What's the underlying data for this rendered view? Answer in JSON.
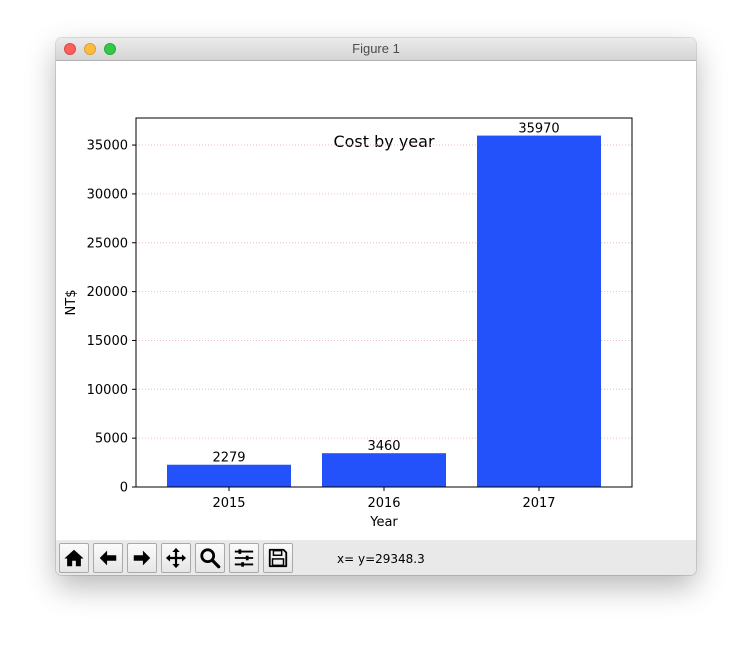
{
  "window": {
    "title": "Figure 1"
  },
  "toolbar": {
    "buttons": [
      {
        "name": "home",
        "icon": "home-icon"
      },
      {
        "name": "back",
        "icon": "arrow-left-icon"
      },
      {
        "name": "forward",
        "icon": "arrow-right-icon"
      },
      {
        "name": "pan",
        "icon": "move-icon"
      },
      {
        "name": "zoom",
        "icon": "magnifier-icon"
      },
      {
        "name": "configure-subplots",
        "icon": "sliders-icon"
      },
      {
        "name": "save",
        "icon": "floppy-disk-icon"
      }
    ],
    "coords": "x= y=29348.3"
  },
  "chart_data": {
    "type": "bar",
    "title": "Cost by year",
    "xlabel": "Year",
    "ylabel": "NT$",
    "categories": [
      "2015",
      "2016",
      "2017"
    ],
    "values": [
      2279,
      3460,
      35970
    ],
    "data_labels": [
      "2279",
      "3460",
      "35970"
    ],
    "ylim": [
      0,
      37770
    ],
    "yticks": [
      0,
      5000,
      10000,
      15000,
      20000,
      25000,
      30000,
      35000
    ],
    "ytick_labels": [
      "0",
      "5000",
      "10000",
      "15000",
      "20000",
      "25000",
      "30000",
      "35000"
    ],
    "grid": "horizontal dotted",
    "colors": {
      "bar": "#2452fa",
      "grid": "#f4b6c2",
      "axes": "#000000"
    }
  }
}
